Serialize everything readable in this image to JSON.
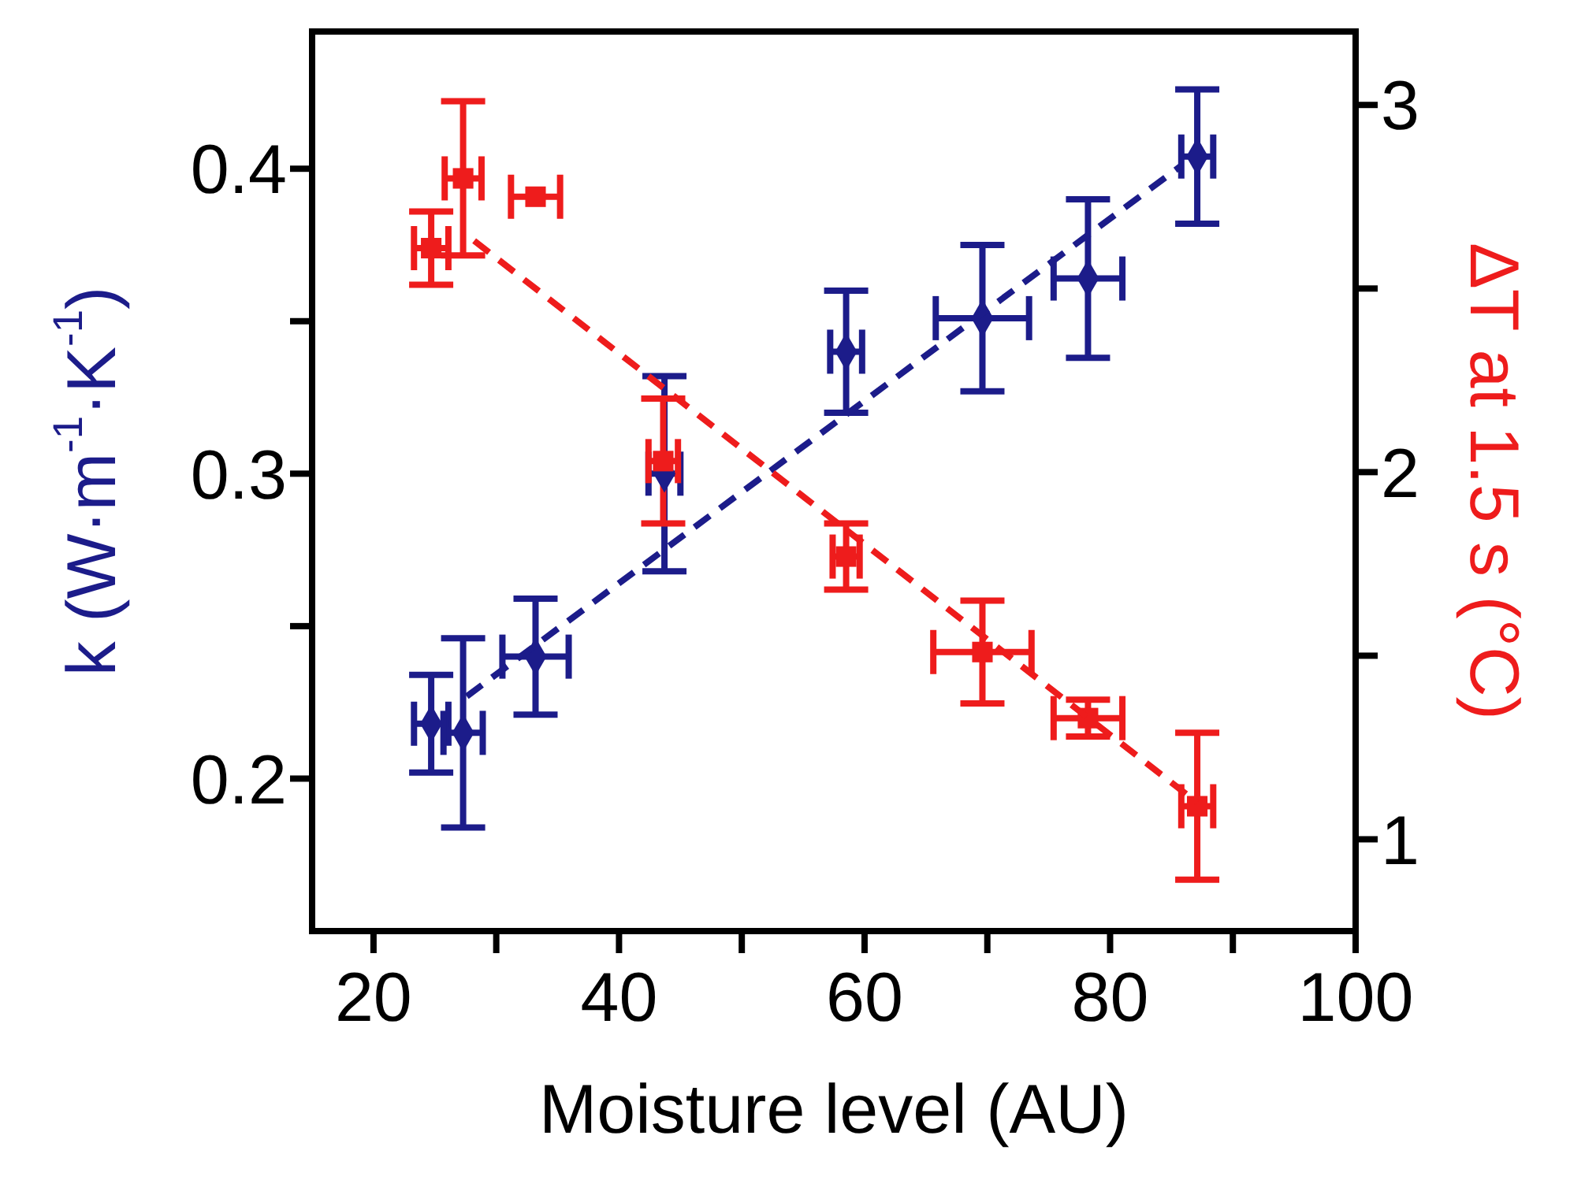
{
  "chart_data": {
    "type": "scatter",
    "xlabel": "Moisture level (AU)",
    "ylabel": "k (W·m$^{-1}$·K$^{-1}$)",
    "y2label": "ΔT at 1.5 s (°C)",
    "xlim": [
      15,
      100
    ],
    "xticks": [
      20,
      {
        "value": 30,
        "label": null
      },
      40,
      {
        "value": 50,
        "label": null
      },
      60,
      {
        "value": 70,
        "label": null
      },
      80,
      {
        "value": 90,
        "label": null
      },
      100
    ],
    "ylim": [
      0.15,
      0.445
    ],
    "yticks": [
      0.2,
      {
        "value": 0.25,
        "label": null
      },
      0.3,
      {
        "value": 0.35,
        "label": null
      },
      0.4
    ],
    "y2lim": [
      0.75,
      3.2
    ],
    "y2ticks": [
      1,
      {
        "value": 1.5,
        "label": null
      },
      2,
      {
        "value": 2.5,
        "label": null
      },
      3
    ],
    "grid": false,
    "legend": false,
    "series": [
      {
        "color": "#1c1c8a",
        "marker": "diamond",
        "x": [
          24.7,
          27.3,
          33.2,
          43.7,
          58.5,
          69.6,
          78.2,
          87.1
        ],
        "values": [
          0.218,
          0.215,
          0.24,
          0.3,
          0.34,
          0.351,
          0.364,
          0.404
        ],
        "errors": [
          0.016,
          0.031,
          0.019,
          0.032,
          0.02,
          0.024,
          0.026,
          0.022
        ],
        "xerrors": [
          1.4,
          1.6,
          2.7,
          1.3,
          1.3,
          3.8,
          2.8,
          1.3
        ]
      },
      {
        "color": "#ee1c1c",
        "marker": "square",
        "axis": "y2",
        "x": [
          24.7,
          27.3,
          33.2,
          43.6,
          58.5,
          69.6,
          78.2,
          87.1
        ],
        "values": [
          2.61,
          2.8,
          2.75,
          2.03,
          1.77,
          1.51,
          1.33,
          1.09
        ],
        "errors": [
          0.1,
          0.21,
          null,
          0.17,
          0.09,
          0.14,
          0.05,
          0.2
        ],
        "xerrors": [
          1.4,
          1.5,
          2.0,
          1.2,
          1.1,
          4.0,
          2.8,
          1.3
        ]
      },
      {
        "type": "line",
        "color": "#1c1c8a",
        "marker": "none",
        "line_style": "dashed",
        "x": [
          27.6,
          85.8
        ],
        "values": [
          0.227,
          0.401
        ]
      },
      {
        "type": "line",
        "color": "#ee1c1c",
        "marker": "none",
        "line_style": "dashed",
        "axis": "y2",
        "x": [
          28.2,
          87.1
        ],
        "values": [
          2.63,
          1.1
        ]
      }
    ]
  }
}
